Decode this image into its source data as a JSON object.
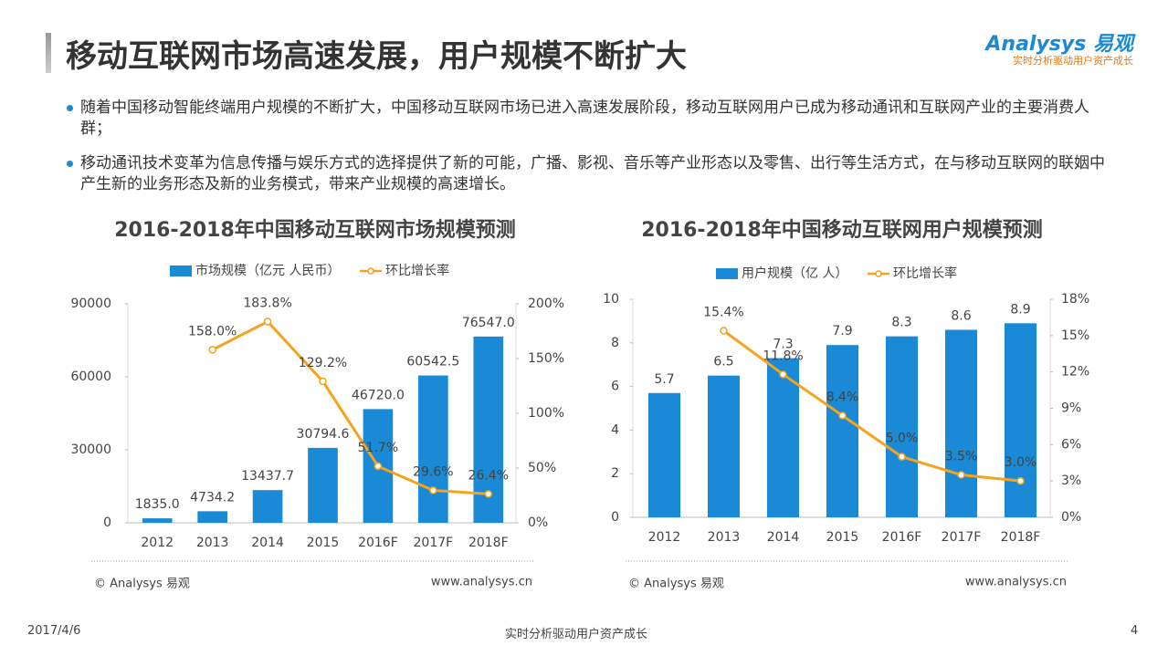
{
  "header": {
    "title": "移动互联网市场高速发展，用户规模不断扩大",
    "logo": "Analysys 易观",
    "tagline": "实时分析驱动用户资产成长"
  },
  "bullets": [
    "随着中国移动智能终端用户规模的不断扩大，中国移动互联网市场已进入高速发展阶段，移动互联网用户已成为移动通讯和互联网产业的主要消费人群；",
    "移动通讯技术变革为信息传播与娱乐方式的选择提供了新的可能，广播、影视、音乐等产业形态以及零售、出行等生活方式，在与移动互联网的联姻中产生新的业务形态及新的业务模式，带来产业规模的高速增长。"
  ],
  "chart_data": [
    {
      "type": "bar_line",
      "title": "2016-2018年中国移动互联网市场规模预测",
      "categories": [
        "2012",
        "2013",
        "2014",
        "2015",
        "2016F",
        "2017F",
        "2018F"
      ],
      "series": [
        {
          "name": "市场规模（亿元 人民币）",
          "color": "#1a8ad6",
          "values": [
            1835.0,
            4734.2,
            13437.7,
            30794.6,
            46720.0,
            60542.5,
            76547.0
          ],
          "value_labels": [
            "1835.0",
            "4734.2",
            "13437.7",
            "30794.6",
            "46720.0",
            "60542.5",
            "76547.0"
          ]
        },
        {
          "name": "环比增长率",
          "color": "#f5a21d",
          "axis": "y2",
          "values": [
            null,
            158.0,
            183.8,
            129.2,
            51.7,
            29.6,
            26.4
          ],
          "value_labels": [
            null,
            "158.0%",
            "183.8%",
            "129.2%",
            "51.7%",
            "29.6%",
            "26.4%"
          ]
        }
      ],
      "ylim": [
        0,
        90000
      ],
      "yticks": [
        0,
        30000,
        60000,
        90000
      ],
      "y2lim": [
        0,
        200
      ],
      "y2ticks": [
        {
          "value": 0,
          "label": "0%"
        },
        {
          "value": 50,
          "label": "50%"
        },
        {
          "value": 100,
          "label": "100%"
        },
        {
          "value": 150,
          "label": "150%"
        },
        {
          "value": 200,
          "label": "200%"
        }
      ],
      "source": "© Analysys 易观",
      "url": "www.analysys.cn"
    },
    {
      "type": "bar_line",
      "title": "2016-2018年中国移动互联网用户规模预测",
      "categories": [
        "2012",
        "2013",
        "2014",
        "2015",
        "2016F",
        "2017F",
        "2018F"
      ],
      "series": [
        {
          "name": "用户规模（亿 人）",
          "color": "#1a8ad6",
          "values": [
            5.7,
            6.5,
            7.3,
            7.9,
            8.3,
            8.6,
            8.9
          ]
        },
        {
          "name": "环比增长率",
          "color": "#f5a21d",
          "axis": "y2",
          "values": [
            null,
            15.4,
            11.8,
            8.4,
            5.0,
            3.5,
            3.0
          ],
          "value_labels": [
            null,
            "15.4%",
            "11.8%",
            "8.4%",
            "5.0%",
            "3.5%",
            "3.0%"
          ]
        }
      ],
      "ylim": [
        0,
        10
      ],
      "yticks": [
        0,
        2,
        4,
        6,
        8,
        10
      ],
      "y2lim": [
        0,
        18
      ],
      "y2ticks": [
        {
          "value": 0,
          "label": "0%"
        },
        {
          "value": 3,
          "label": "3%"
        },
        {
          "value": 6,
          "label": "6%"
        },
        {
          "value": 9,
          "label": "9%"
        },
        {
          "value": 12,
          "label": "12%"
        },
        {
          "value": 15,
          "label": "15%"
        },
        {
          "value": 18,
          "label": "18%"
        }
      ],
      "source": "© Analysys 易观",
      "url": "www.analysys.cn"
    }
  ],
  "footer": {
    "date": "2017/4/6",
    "center": "实时分析驱动用户资产成长",
    "page": "4"
  }
}
